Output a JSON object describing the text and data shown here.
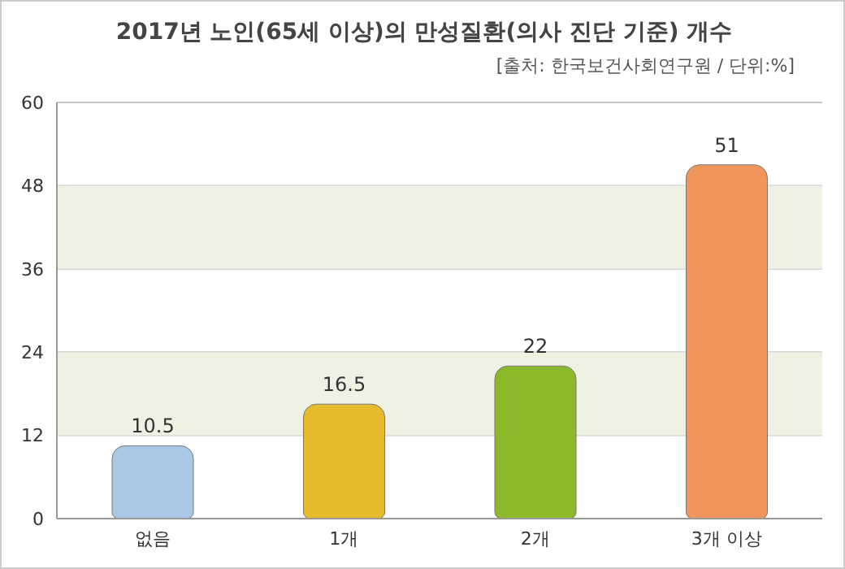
{
  "chart_data": {
    "type": "bar",
    "title": "2017년 노인(65세 이상)의 만성질환(의사 진단 기준) 개수",
    "subtitle": "[출처: 한국보건사회연구원 / 단위:%]",
    "categories": [
      "없음",
      "1개",
      "2개",
      "3개 이상"
    ],
    "values": [
      10.5,
      16.5,
      22,
      51
    ],
    "colors": [
      "#a8c8e6",
      "#e6bc2c",
      "#8cb82a",
      "#f0955c"
    ],
    "ylim": [
      0,
      60
    ],
    "yticks": [
      0,
      12,
      24,
      36,
      48,
      60
    ],
    "grid": "y",
    "bands": [
      {
        "axis": "y",
        "from": 12,
        "to": 24,
        "color": "#eef2e2"
      },
      {
        "axis": "y",
        "from": 36,
        "to": 48,
        "color": "#eef2e2"
      }
    ],
    "data_labels": true
  }
}
